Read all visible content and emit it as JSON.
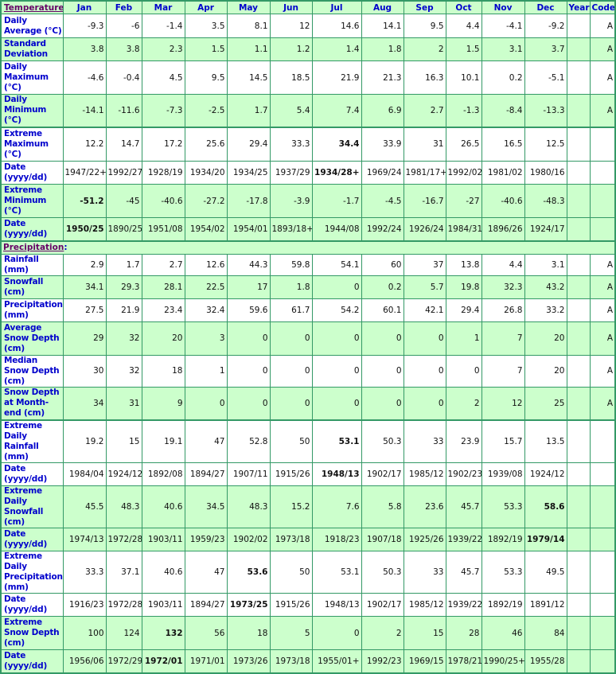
{
  "header": {
    "section_temperature": "Temperature",
    "colon": ":",
    "columns": [
      "Jan",
      "Feb",
      "Mar",
      "Apr",
      "May",
      "Jun",
      "Jul",
      "Aug",
      "Sep",
      "Oct",
      "Nov",
      "Dec",
      "Year",
      "Code"
    ]
  },
  "colors": {
    "row_green": "#ccffcc",
    "border": "#339966",
    "label_text": "#0000cc",
    "section_link": "#660066"
  },
  "temperature_rows": [
    {
      "label": "Daily Average (°C)",
      "values": [
        "-9.3",
        "-6",
        "-1.4",
        "3.5",
        "8.1",
        "12",
        "14.6",
        "14.1",
        "9.5",
        "4.4",
        "-4.1",
        "-9.2",
        "",
        ""
      ],
      "code": "A",
      "bold": -1,
      "shade": "w",
      "h": 30
    },
    {
      "label": "Standard Deviation",
      "values": [
        "3.8",
        "3.8",
        "2.3",
        "1.5",
        "1.1",
        "1.2",
        "1.4",
        "1.8",
        "2",
        "1.5",
        "3.1",
        "3.7",
        ""
      ],
      "code": "A",
      "bold": -1,
      "shade": "g",
      "h": 29
    },
    {
      "label": "Daily Maximum (°C)",
      "values": [
        "-4.6",
        "-0.4",
        "4.5",
        "9.5",
        "14.5",
        "18.5",
        "21.9",
        "21.3",
        "16.3",
        "10.1",
        "0.2",
        "-5.1",
        ""
      ],
      "code": "A",
      "bold": -1,
      "shade": "w",
      "h": 42
    },
    {
      "label": "Daily Minimum (°C)",
      "values": [
        "-14.1",
        "-11.6",
        "-7.3",
        "-2.5",
        "1.7",
        "5.4",
        "7.4",
        "6.9",
        "2.7",
        "-1.3",
        "-8.4",
        "-13.3",
        ""
      ],
      "code": "A",
      "bold": -1,
      "shade": "g",
      "h": 41,
      "sep": true
    },
    {
      "label": "Extreme Maximum (°C)",
      "values": [
        "12.2",
        "14.7",
        "17.2",
        "25.6",
        "29.4",
        "33.3",
        "34.4",
        "33.9",
        "31",
        "26.5",
        "16.5",
        "12.5",
        ""
      ],
      "code": "",
      "bold": 6,
      "shade": "w",
      "h": 43
    },
    {
      "label": "Date (yyyy/dd)",
      "values": [
        "1947/22+",
        "1992/27",
        "1928/19",
        "1934/20",
        "1934/25",
        "1937/29",
        "1934/28+",
        "1969/24",
        "1981/17+",
        "1992/02",
        "1981/02",
        "1980/16",
        ""
      ],
      "code": "",
      "bold": 6,
      "shade": "w",
      "h": 29
    },
    {
      "label": "Extreme Minimum (°C)",
      "values": [
        "-51.2",
        "-45",
        "-40.6",
        "-27.2",
        "-17.8",
        "-3.9",
        "-1.7",
        "-4.5",
        "-16.7",
        "-27",
        "-40.6",
        "-48.3",
        ""
      ],
      "code": "",
      "bold": 0,
      "shade": "g",
      "h": 42
    },
    {
      "label": "Date (yyyy/dd)",
      "values": [
        "1950/25",
        "1890/25",
        "1951/08",
        "1954/02",
        "1954/01",
        "1893/18+",
        "1944/08",
        "1992/24",
        "1926/24",
        "1984/31",
        "1896/26",
        "1924/17",
        ""
      ],
      "code": "",
      "bold": 0,
      "shade": "g",
      "h": 29,
      "sep": true
    }
  ],
  "precipitation": {
    "section_label": "Precipitation",
    "colon": ":",
    "rows": [
      {
        "label": "Rainfall (mm)",
        "values": [
          "2.9",
          "1.7",
          "2.7",
          "12.6",
          "44.3",
          "59.8",
          "54.1",
          "60",
          "37",
          "13.8",
          "4.4",
          "3.1",
          ""
        ],
        "code": "A",
        "bold": -1,
        "shade": "w",
        "h": 16
      },
      {
        "label": "Snowfall (cm)",
        "values": [
          "34.1",
          "29.3",
          "28.1",
          "22.5",
          "17",
          "1.8",
          "0",
          "0.2",
          "5.7",
          "19.8",
          "32.3",
          "43.2",
          ""
        ],
        "code": "A",
        "bold": -1,
        "shade": "g",
        "h": 29
      },
      {
        "label": "Precipitation (mm)",
        "values": [
          "27.5",
          "21.9",
          "23.4",
          "32.4",
          "59.6",
          "61.7",
          "54.2",
          "60.1",
          "42.1",
          "29.4",
          "26.8",
          "33.2",
          ""
        ],
        "code": "A",
        "bold": -1,
        "shade": "w",
        "h": 29
      },
      {
        "label": "Average Snow Depth (cm)",
        "values": [
          "29",
          "32",
          "20",
          "3",
          "0",
          "0",
          "0",
          "0",
          "0",
          "1",
          "7",
          "20",
          ""
        ],
        "code": "A",
        "bold": -1,
        "shade": "g",
        "h": 42
      },
      {
        "label": "Median Snow Depth (cm)",
        "values": [
          "30",
          "32",
          "18",
          "1",
          "0",
          "0",
          "0",
          "0",
          "0",
          "0",
          "7",
          "20",
          ""
        ],
        "code": "A",
        "bold": -1,
        "shade": "w",
        "h": 29
      },
      {
        "label": "Snow Depth at Month-end (cm)",
        "values": [
          "34",
          "31",
          "9",
          "0",
          "0",
          "0",
          "0",
          "0",
          "0",
          "2",
          "12",
          "25",
          ""
        ],
        "code": "A",
        "bold": -1,
        "shade": "g",
        "h": 42,
        "sep": true
      },
      {
        "label": "Extreme Daily Rainfall (mm)",
        "values": [
          "19.2",
          "15",
          "19.1",
          "47",
          "52.8",
          "50",
          "53.1",
          "50.3",
          "33",
          "23.9",
          "15.7",
          "13.5",
          ""
        ],
        "code": "",
        "bold": 6,
        "shade": "w",
        "h": 30
      },
      {
        "label": "Date (yyyy/dd)",
        "values": [
          "1984/04",
          "1924/12",
          "1892/08",
          "1894/27",
          "1907/11",
          "1915/26",
          "1948/13",
          "1902/17",
          "1985/12",
          "1902/23",
          "1939/08",
          "1924/12",
          ""
        ],
        "code": "",
        "bold": 6,
        "shade": "w",
        "h": 29
      },
      {
        "label": "Extreme Daily Snowfall (cm)",
        "values": [
          "45.5",
          "48.3",
          "40.6",
          "34.5",
          "48.3",
          "15.2",
          "7.6",
          "5.8",
          "23.6",
          "45.7",
          "53.3",
          "58.6",
          ""
        ],
        "code": "",
        "bold": 11,
        "shade": "g",
        "h": 42
      },
      {
        "label": "Date (yyyy/dd)",
        "values": [
          "1974/13",
          "1972/28",
          "1903/11",
          "1959/23",
          "1902/02",
          "1973/18",
          "1918/23",
          "1907/18",
          "1925/26",
          "1939/22",
          "1892/19",
          "1979/14",
          ""
        ],
        "code": "",
        "bold": 11,
        "shade": "g",
        "h": 29
      },
      {
        "label": "Extreme Daily Precipitation (mm)",
        "values": [
          "33.3",
          "37.1",
          "40.6",
          "47",
          "53.6",
          "50",
          "53.1",
          "50.3",
          "33",
          "45.7",
          "53.3",
          "49.5",
          ""
        ],
        "code": "",
        "bold": 4,
        "shade": "w",
        "h": 42
      },
      {
        "label": "Date (yyyy/dd)",
        "values": [
          "1916/23",
          "1972/28",
          "1903/11",
          "1894/27",
          "1973/25",
          "1915/26",
          "1948/13",
          "1902/17",
          "1985/12",
          "1939/22",
          "1892/19",
          "1891/12",
          ""
        ],
        "code": "",
        "bold": 4,
        "shade": "w",
        "h": 29
      },
      {
        "label": "Extreme Snow Depth (cm)",
        "values": [
          "100",
          "124",
          "132",
          "56",
          "18",
          "5",
          "0",
          "2",
          "15",
          "28",
          "46",
          "84",
          ""
        ],
        "code": "",
        "bold": 2,
        "shade": "g",
        "h": 42
      },
      {
        "label": "Date (yyyy/dd)",
        "values": [
          "1956/06",
          "1972/29",
          "1972/01",
          "1971/01",
          "1973/26",
          "1973/18",
          "1955/01+",
          "1992/23",
          "1969/15",
          "1978/21",
          "1990/25+",
          "1955/28",
          ""
        ],
        "code": "",
        "bold": 2,
        "shade": "g",
        "h": 29
      }
    ]
  }
}
